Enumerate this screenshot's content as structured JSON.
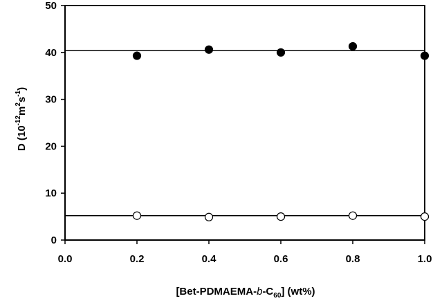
{
  "chart_data": {
    "type": "scatter",
    "xlim": [
      0.0,
      1.0
    ],
    "ylim": [
      0,
      50
    ],
    "x_ticks": [
      "0.0",
      "0.2",
      "0.4",
      "0.6",
      "0.8",
      "1.0"
    ],
    "y_ticks": [
      "0",
      "10",
      "20",
      "30",
      "40",
      "50"
    ],
    "xlabel": {
      "prefix": "[Bet-PDMAEMA-",
      "italic": "b",
      "middle": "-C",
      "subscript": "60",
      "suffix": "] (wt%)"
    },
    "ylabel": {
      "prefix": "D (10",
      "sup1": "-12",
      "middle": "m",
      "sup2": "2",
      "middle2": "s",
      "sup3": "-1",
      "suffix": ")"
    },
    "grid": false,
    "legend": "none",
    "series": [
      {
        "marker": "filled-circle",
        "x": [
          0.2,
          0.4,
          0.6,
          0.8,
          1.0
        ],
        "y": [
          39.3,
          40.6,
          40.0,
          41.3,
          39.3
        ],
        "fit_line": 40.4
      },
      {
        "marker": "open-circle",
        "x": [
          0.2,
          0.4,
          0.6,
          0.8,
          1.0
        ],
        "y": [
          5.2,
          4.9,
          5.0,
          5.2,
          5.0
        ],
        "fit_line": 5.2
      }
    ]
  }
}
